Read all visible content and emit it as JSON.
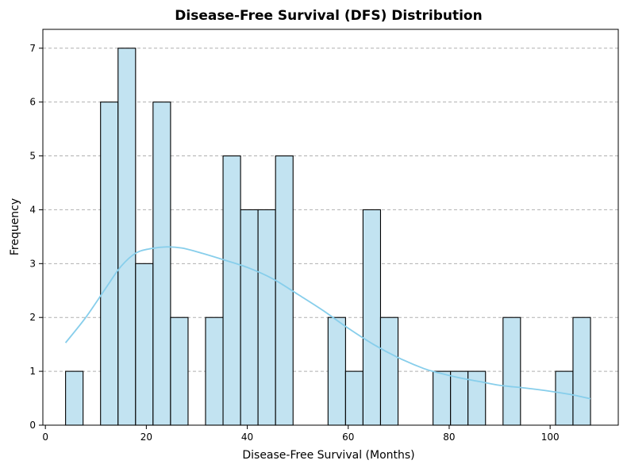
{
  "chart_data": {
    "type": "bar",
    "title": "Disease-Free Survival (DFS) Distribution",
    "xlabel": "Disease-Free Survival (Months)",
    "ylabel": "Frequency",
    "xlim": [
      -0.5,
      113.5
    ],
    "ylim": [
      0,
      7.35
    ],
    "xticks": [
      0,
      20,
      40,
      60,
      80,
      100
    ],
    "yticks": [
      0,
      1,
      2,
      3,
      4,
      5,
      6,
      7
    ],
    "grid": "y-dashed",
    "bin_edges": [
      4,
      7.47,
      10.93,
      14.4,
      17.87,
      21.33,
      24.8,
      28.27,
      31.73,
      35.2,
      38.67,
      42.13,
      45.6,
      49.07,
      52.53,
      56,
      59.47,
      62.93,
      66.4,
      69.87,
      73.33,
      76.8,
      80.27,
      83.73,
      87.2,
      90.67,
      94.13,
      97.6,
      101.07,
      104.53,
      108
    ],
    "counts": [
      1,
      0,
      6,
      7,
      3,
      6,
      2,
      0,
      2,
      5,
      4,
      4,
      5,
      0,
      0,
      2,
      1,
      4,
      2,
      0,
      0,
      1,
      1,
      1,
      0,
      2,
      0,
      0,
      1,
      2
    ],
    "kde": {
      "x": [
        4,
        8,
        12,
        15,
        18,
        21,
        24,
        27,
        30,
        35,
        40,
        45,
        50,
        55,
        60,
        65,
        70,
        75,
        78,
        82,
        86,
        90,
        95,
        100,
        104,
        108
      ],
      "y": [
        1.53,
        2.0,
        2.55,
        2.95,
        3.2,
        3.28,
        3.31,
        3.29,
        3.22,
        3.08,
        2.93,
        2.72,
        2.43,
        2.13,
        1.8,
        1.5,
        1.25,
        1.05,
        0.97,
        0.88,
        0.81,
        0.74,
        0.69,
        0.63,
        0.57,
        0.49
      ]
    },
    "colors": {
      "bar_fill": "#c2e3f1",
      "kde_line": "#87ceeb",
      "edge": "#000000"
    }
  }
}
